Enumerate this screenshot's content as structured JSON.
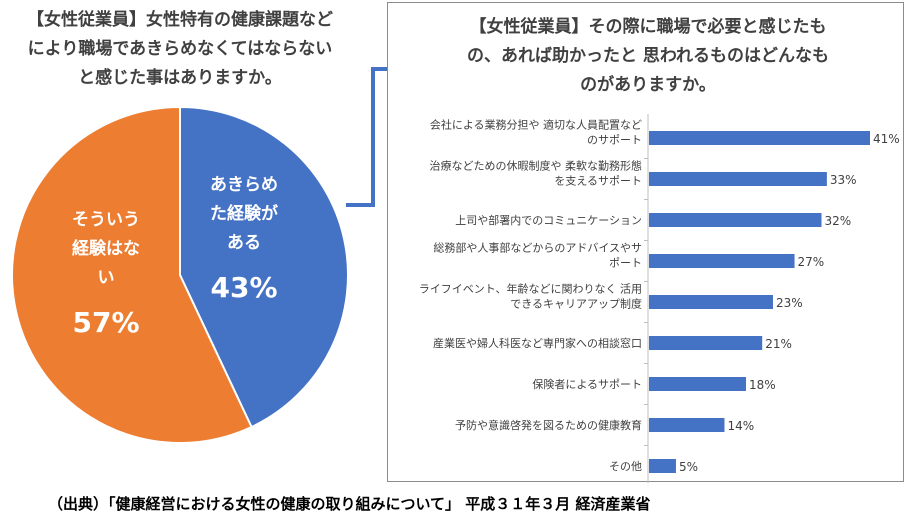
{
  "left_question": {
    "lines": [
      "【女性従業員】女性特有の健康課題など",
      "により職場であきらめなくてはならない",
      "と感じた事はありますか。"
    ]
  },
  "right_question": {
    "lines": [
      "【女性従業員】その際に職場で必要と感じたも",
      "の、あれば助かったと 思われるものはどんなも",
      "のがありますか。"
    ]
  },
  "source": "（出典）「健康経営における女性の健康の取り組みについて」 平成３１年３月 経済産業省",
  "colors": {
    "blue": "#4472c4",
    "orange": "#ed7d31",
    "arrow": "#4472c4"
  },
  "chart_data": [
    {
      "type": "pie",
      "slices": [
        {
          "label_lines": [
            "あきらめ",
            "た経験が",
            "ある"
          ],
          "value": 43,
          "value_label": "43%",
          "color": "#4472c4"
        },
        {
          "label_lines": [
            "そういう",
            "経験はな",
            "い"
          ],
          "value": 57,
          "value_label": "57%",
          "color": "#ed7d31"
        }
      ]
    },
    {
      "type": "bar",
      "orientation": "horizontal",
      "xlim": [
        0,
        41
      ],
      "categories": [
        [
          "会社による業務分担や 適切な人員配置など",
          "のサポート"
        ],
        [
          "治療などための休暇制度や 柔軟な勤務形態",
          "を支えるサポート"
        ],
        [
          "上司や部署内でのコミュニケーション"
        ],
        [
          "総務部や人事部などからのアドバイスやサ",
          "ポート"
        ],
        [
          "ライフイベント、年齢などに関わりなく 活用",
          "できるキャリアアップ制度"
        ],
        [
          "産業医や婦人科医など専門家への相談窓口"
        ],
        [
          "保険者によるサポート"
        ],
        [
          "予防や意識啓発を図るための健康教育"
        ],
        [
          "その他"
        ]
      ],
      "values": [
        41,
        33,
        32,
        27,
        23,
        21,
        18,
        14,
        5
      ],
      "value_labels": [
        "41%",
        "33%",
        "32%",
        "27%",
        "23%",
        "21%",
        "18%",
        "14%",
        "5%"
      ],
      "color": "#4472c4"
    }
  ]
}
